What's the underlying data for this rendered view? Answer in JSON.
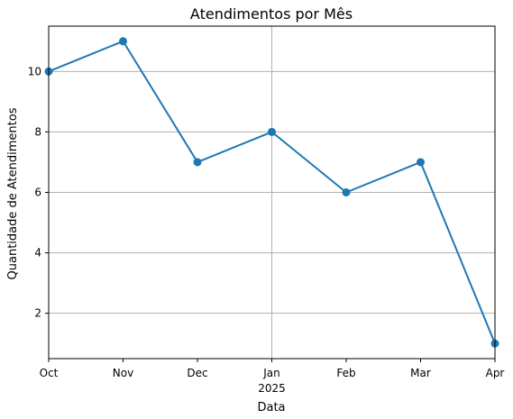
{
  "chart_data": {
    "type": "line",
    "title": "Atendimentos por Mês",
    "xlabel": "Data",
    "ylabel": "Quantidade de Atendimentos",
    "x": [
      "2024-10",
      "2024-11",
      "2024-12",
      "2025-01",
      "2025-02",
      "2025-03",
      "2025-04"
    ],
    "x_tick_labels": [
      "Oct",
      "Nov",
      "Dec",
      "Jan",
      "Feb",
      "Mar",
      "Apr"
    ],
    "x_year_label": "2025",
    "series": [
      {
        "values": [
          10,
          11,
          7,
          8,
          6,
          7,
          1
        ]
      }
    ],
    "yticks": [
      2,
      4,
      6,
      8,
      10
    ],
    "ylim": [
      0.5,
      11.5
    ],
    "grid": true,
    "line_color": "#1f77b4"
  }
}
